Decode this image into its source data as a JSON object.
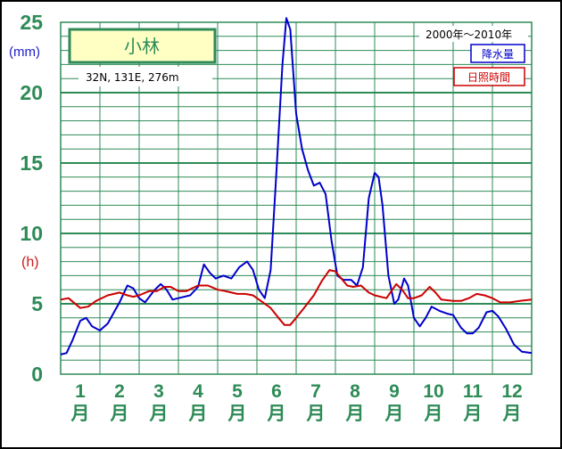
{
  "chart_data": {
    "type": "line",
    "title": "小林",
    "location": "32N, 131E, 276m",
    "period": "2000年～2010年",
    "y_unit_precip": "(mm)",
    "y_unit_sun": "(h)",
    "yticks": [
      "0",
      "5",
      "10",
      "15",
      "20",
      "25"
    ],
    "ylim": [
      0,
      25
    ],
    "x_labels": [
      {
        "num": "1",
        "unit": "月"
      },
      {
        "num": "2",
        "unit": "月"
      },
      {
        "num": "3",
        "unit": "月"
      },
      {
        "num": "4",
        "unit": "月"
      },
      {
        "num": "5",
        "unit": "月"
      },
      {
        "num": "6",
        "unit": "月"
      },
      {
        "num": "7",
        "unit": "月"
      },
      {
        "num": "8",
        "unit": "月"
      },
      {
        "num": "9",
        "unit": "月"
      },
      {
        "num": "10",
        "unit": "月"
      },
      {
        "num": "11",
        "unit": "月"
      },
      {
        "num": "12",
        "unit": "月"
      }
    ],
    "x_domain": [
      0,
      12
    ],
    "series": [
      {
        "name": "降水量",
        "color": "#0000cc",
        "points": [
          [
            0,
            1.4
          ],
          [
            0.15,
            1.5
          ],
          [
            0.3,
            2.4
          ],
          [
            0.5,
            3.8
          ],
          [
            0.65,
            4.0
          ],
          [
            0.8,
            3.4
          ],
          [
            1.0,
            3.1
          ],
          [
            1.2,
            3.6
          ],
          [
            1.5,
            5.1
          ],
          [
            1.7,
            6.3
          ],
          [
            1.85,
            6.1
          ],
          [
            2.0,
            5.4
          ],
          [
            2.15,
            5.1
          ],
          [
            2.4,
            6.0
          ],
          [
            2.55,
            6.4
          ],
          [
            2.7,
            6.0
          ],
          [
            2.85,
            5.3
          ],
          [
            3.0,
            5.4
          ],
          [
            3.3,
            5.6
          ],
          [
            3.5,
            6.2
          ],
          [
            3.65,
            7.8
          ],
          [
            3.8,
            7.2
          ],
          [
            3.95,
            6.8
          ],
          [
            4.15,
            7.0
          ],
          [
            4.35,
            6.8
          ],
          [
            4.55,
            7.6
          ],
          [
            4.75,
            8.0
          ],
          [
            4.9,
            7.4
          ],
          [
            5.05,
            6.0
          ],
          [
            5.2,
            5.4
          ],
          [
            5.35,
            7.4
          ],
          [
            5.5,
            14.5
          ],
          [
            5.65,
            22.0
          ],
          [
            5.75,
            25.3
          ],
          [
            5.85,
            24.5
          ],
          [
            6.0,
            18.5
          ],
          [
            6.15,
            16.0
          ],
          [
            6.3,
            14.5
          ],
          [
            6.45,
            13.4
          ],
          [
            6.6,
            13.6
          ],
          [
            6.75,
            12.8
          ],
          [
            6.9,
            9.5
          ],
          [
            7.05,
            7.0
          ],
          [
            7.2,
            6.7
          ],
          [
            7.4,
            6.7
          ],
          [
            7.55,
            6.3
          ],
          [
            7.7,
            7.6
          ],
          [
            7.85,
            12.5
          ],
          [
            8.0,
            14.3
          ],
          [
            8.1,
            14.0
          ],
          [
            8.2,
            12.0
          ],
          [
            8.35,
            7.0
          ],
          [
            8.5,
            5.0
          ],
          [
            8.6,
            5.3
          ],
          [
            8.75,
            6.8
          ],
          [
            8.85,
            6.3
          ],
          [
            9.0,
            4.0
          ],
          [
            9.15,
            3.4
          ],
          [
            9.3,
            4.0
          ],
          [
            9.45,
            4.8
          ],
          [
            9.65,
            4.5
          ],
          [
            9.85,
            4.3
          ],
          [
            10.0,
            4.2
          ],
          [
            10.2,
            3.3
          ],
          [
            10.35,
            2.9
          ],
          [
            10.5,
            2.9
          ],
          [
            10.65,
            3.3
          ],
          [
            10.85,
            4.4
          ],
          [
            11.0,
            4.5
          ],
          [
            11.15,
            4.1
          ],
          [
            11.35,
            3.2
          ],
          [
            11.55,
            2.1
          ],
          [
            11.75,
            1.6
          ],
          [
            12.0,
            1.5
          ]
        ]
      },
      {
        "name": "日照時間",
        "color": "#cc0000",
        "points": [
          [
            0,
            5.3
          ],
          [
            0.2,
            5.4
          ],
          [
            0.5,
            4.7
          ],
          [
            0.7,
            4.8
          ],
          [
            0.9,
            5.2
          ],
          [
            1.2,
            5.6
          ],
          [
            1.5,
            5.8
          ],
          [
            1.7,
            5.6
          ],
          [
            1.85,
            5.5
          ],
          [
            2.0,
            5.6
          ],
          [
            2.25,
            5.9
          ],
          [
            2.45,
            5.9
          ],
          [
            2.65,
            6.2
          ],
          [
            2.8,
            6.2
          ],
          [
            3.0,
            5.9
          ],
          [
            3.2,
            5.9
          ],
          [
            3.5,
            6.3
          ],
          [
            3.75,
            6.3
          ],
          [
            4.0,
            6.0
          ],
          [
            4.2,
            5.9
          ],
          [
            4.5,
            5.7
          ],
          [
            4.7,
            5.7
          ],
          [
            4.9,
            5.6
          ],
          [
            5.1,
            5.2
          ],
          [
            5.35,
            4.7
          ],
          [
            5.55,
            4.0
          ],
          [
            5.7,
            3.5
          ],
          [
            5.85,
            3.5
          ],
          [
            6.0,
            4.0
          ],
          [
            6.2,
            4.7
          ],
          [
            6.45,
            5.6
          ],
          [
            6.65,
            6.6
          ],
          [
            6.85,
            7.4
          ],
          [
            7.0,
            7.3
          ],
          [
            7.15,
            6.8
          ],
          [
            7.3,
            6.3
          ],
          [
            7.45,
            6.2
          ],
          [
            7.65,
            6.3
          ],
          [
            7.85,
            5.8
          ],
          [
            8.0,
            5.6
          ],
          [
            8.3,
            5.4
          ],
          [
            8.55,
            6.4
          ],
          [
            8.7,
            6.0
          ],
          [
            8.85,
            5.4
          ],
          [
            9.0,
            5.4
          ],
          [
            9.2,
            5.6
          ],
          [
            9.4,
            6.2
          ],
          [
            9.55,
            5.8
          ],
          [
            9.7,
            5.3
          ],
          [
            10.0,
            5.2
          ],
          [
            10.2,
            5.2
          ],
          [
            10.4,
            5.4
          ],
          [
            10.6,
            5.7
          ],
          [
            10.8,
            5.6
          ],
          [
            11.0,
            5.4
          ],
          [
            11.2,
            5.1
          ],
          [
            11.45,
            5.1
          ],
          [
            11.7,
            5.2
          ],
          [
            12.0,
            5.3
          ]
        ]
      }
    ],
    "grid": true,
    "legend_placement": "top-right",
    "colors": {
      "frame": "#2e8b57",
      "grid": "#2e8b57",
      "label": "#2e8b57",
      "precip": "#0000cc",
      "sun": "#cc0000",
      "title_box_fill": "#ffffc4"
    }
  }
}
